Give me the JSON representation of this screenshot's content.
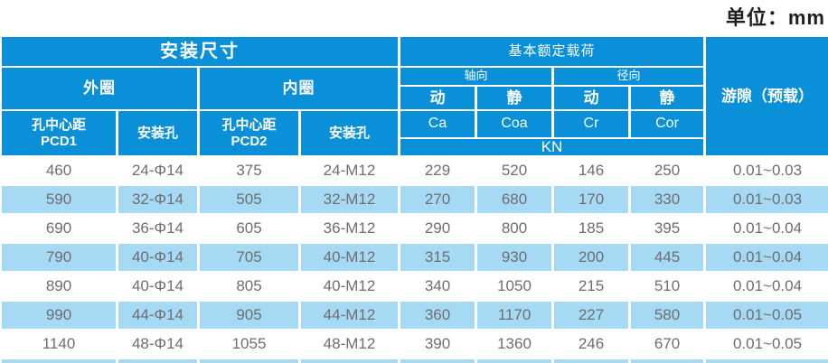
{
  "unit_label": "单位：mm",
  "table": {
    "header": {
      "install_dims": "安装尺寸",
      "outer_ring": "外圈",
      "inner_ring": "内圈",
      "pcd1": "孔中心距\nPCD1",
      "mount_hole_outer": "安装孔",
      "pcd2": "孔中心距\nPCD2",
      "mount_hole_inner": "安装孔",
      "basic_load": "基本额定载荷",
      "axial": "轴向",
      "radial": "径向",
      "axial_dynamic": "动",
      "axial_static": "静",
      "radial_dynamic": "动",
      "radial_static": "静",
      "ca": "Ca",
      "coa": "Coa",
      "cr": "Cr",
      "cor": "Cor",
      "unit_kn": "KN",
      "clearance": "游隙（预载）"
    },
    "rows": [
      {
        "cells": [
          "460",
          "24-Φ14",
          "375",
          "24-M12",
          "229",
          "520",
          "146",
          "250",
          "0.01~0.03"
        ]
      },
      {
        "cells": [
          "590",
          "32-Φ14",
          "505",
          "32-M12",
          "270",
          "680",
          "170",
          "330",
          "0.01~0.03"
        ]
      },
      {
        "cells": [
          "690",
          "36-Φ14",
          "605",
          "36-M12",
          "290",
          "800",
          "185",
          "395",
          "0.01~0.04"
        ]
      },
      {
        "cells": [
          "790",
          "40-Φ14",
          "705",
          "40-M12",
          "315",
          "930",
          "200",
          "445",
          "0.01~0.04"
        ]
      },
      {
        "cells": [
          "890",
          "40-Φ14",
          "805",
          "40-M12",
          "340",
          "1050",
          "215",
          "510",
          "0.01~0.04"
        ]
      },
      {
        "cells": [
          "990",
          "44-Φ14",
          "905",
          "44-M12",
          "360",
          "1170",
          "227",
          "580",
          "0.01~0.05"
        ]
      },
      {
        "cells": [
          "1140",
          "48-Φ14",
          "1055",
          "48-M12",
          "390",
          "1360",
          "246",
          "670",
          "0.01~0.05"
        ]
      }
    ]
  },
  "colors": {
    "header_blue": "#0a90d8",
    "stripe_blue": "#a6d9f3",
    "data_text": "#6c6e70"
  }
}
